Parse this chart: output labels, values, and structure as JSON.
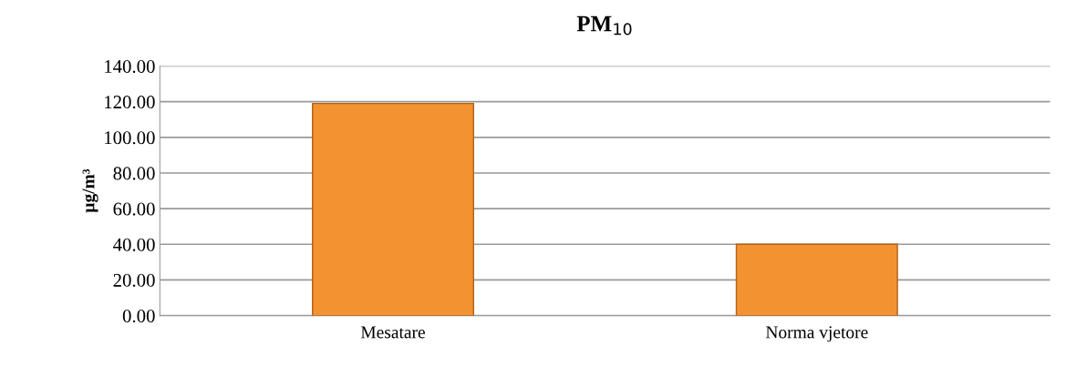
{
  "chart_data": {
    "type": "bar",
    "title": "PM$_{10}$",
    "ylabel": "µg/m³",
    "categories": [
      "Mesatare",
      "Norma vjetore"
    ],
    "values": [
      119,
      40
    ],
    "color": "#f39230",
    "ylim": [
      0,
      140
    ],
    "yticks": [
      {
        "value": 0,
        "label": "0.00"
      },
      {
        "value": 20,
        "label": "20.00"
      },
      {
        "value": 40,
        "label": "40.00"
      },
      {
        "value": 60,
        "label": "60.00"
      },
      {
        "value": 80,
        "label": "80.00"
      },
      {
        "value": 100,
        "label": "100.00"
      },
      {
        "value": 120,
        "label": "120.00"
      },
      {
        "value": 140,
        "label": "140.00"
      }
    ],
    "grid": "y"
  }
}
